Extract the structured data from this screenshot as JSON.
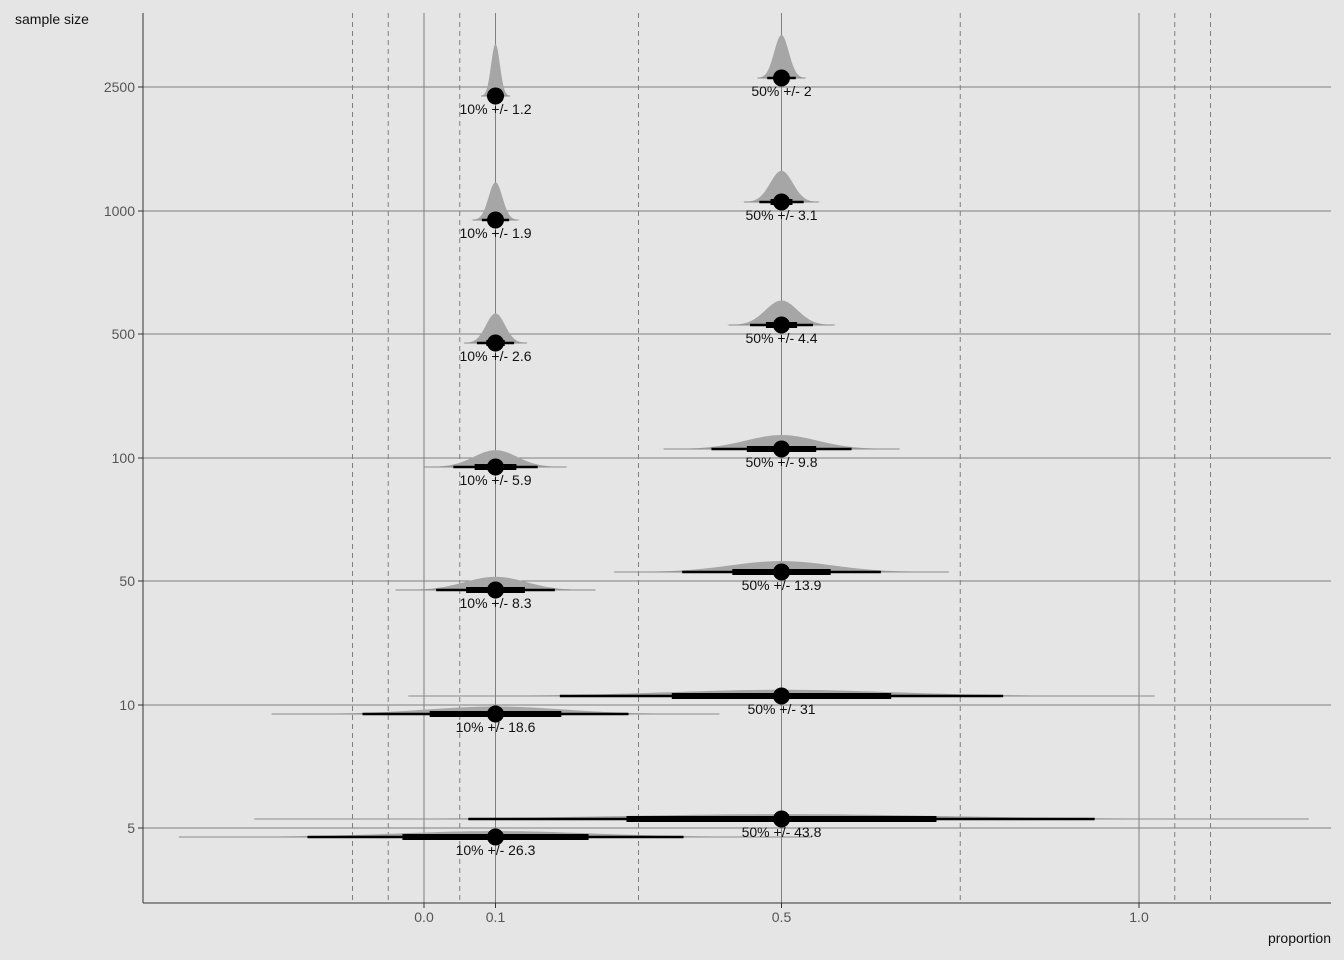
{
  "chart_data": {
    "type": "interval",
    "title": "",
    "xlabel": "proportion",
    "ylabel": "sample size",
    "xlim": [
      -0.4,
      1.27
    ],
    "x_ticks": [
      {
        "value": 0.0,
        "label": "0.0"
      },
      {
        "value": 0.1,
        "label": "0.1"
      },
      {
        "value": 0.5,
        "label": "0.5"
      },
      {
        "value": 1.0,
        "label": "1.0"
      }
    ],
    "y_categories": [
      "5",
      "10",
      "50",
      "100",
      "500",
      "1000",
      "2500"
    ],
    "dashed_reference_lines": [
      -0.1,
      -0.05,
      0.05,
      0.3,
      0.75,
      1.05,
      1.1
    ],
    "series": [
      {
        "proportion": 0.1,
        "rows": [
          {
            "n": "2500",
            "center": 0.1,
            "margin_pct": 1.2,
            "label": "10% +/- 1.2"
          },
          {
            "n": "1000",
            "center": 0.1,
            "margin_pct": 1.9,
            "label": "10% +/- 1.9"
          },
          {
            "n": "500",
            "center": 0.1,
            "margin_pct": 2.6,
            "label": "10% +/- 2.6"
          },
          {
            "n": "100",
            "center": 0.1,
            "margin_pct": 5.9,
            "label": "10% +/- 5.9"
          },
          {
            "n": "50",
            "center": 0.1,
            "margin_pct": 8.3,
            "label": "10% +/- 8.3"
          },
          {
            "n": "10",
            "center": 0.1,
            "margin_pct": 18.6,
            "label": "10% +/- 18.6"
          },
          {
            "n": "5",
            "center": 0.1,
            "margin_pct": 26.3,
            "label": "10% +/- 26.3"
          }
        ]
      },
      {
        "proportion": 0.5,
        "rows": [
          {
            "n": "2500",
            "center": 0.5,
            "margin_pct": 2,
            "label": "50% +/- 2"
          },
          {
            "n": "1000",
            "center": 0.5,
            "margin_pct": 3.1,
            "label": "50% +/- 3.1"
          },
          {
            "n": "500",
            "center": 0.5,
            "margin_pct": 4.4,
            "label": "50% +/- 4.4"
          },
          {
            "n": "100",
            "center": 0.5,
            "margin_pct": 9.8,
            "label": "50% +/- 9.8"
          },
          {
            "n": "50",
            "center": 0.5,
            "margin_pct": 13.9,
            "label": "50% +/- 13.9"
          },
          {
            "n": "10",
            "center": 0.5,
            "margin_pct": 31,
            "label": "50% +/- 31"
          },
          {
            "n": "5",
            "center": 0.5,
            "margin_pct": 43.8,
            "label": "50% +/- 43.8"
          }
        ]
      }
    ],
    "colors": {
      "background": "#e5e5e5",
      "gridline": "#7f7f7f",
      "density": "#a6a6a6",
      "interval": "#000000",
      "point": "#000000"
    }
  }
}
